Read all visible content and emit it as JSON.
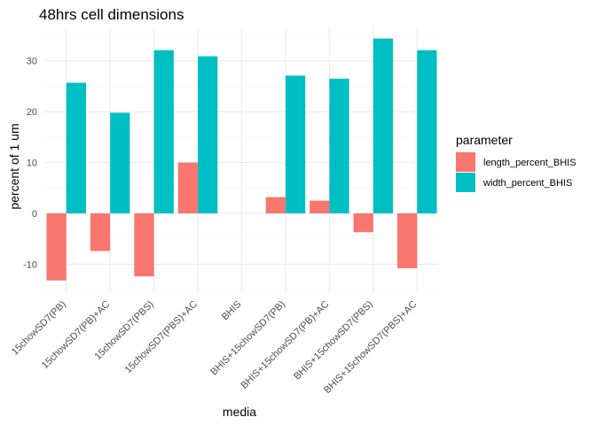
{
  "chart_data": {
    "type": "bar",
    "title": "48hrs cell dimensions",
    "xlabel": "media",
    "ylabel": "percent of 1 um",
    "categories": [
      "15chowSD7(PB)",
      "15chowSD7(PB)+AC",
      "15chowSD7(PBS)",
      "15chowSD7(PBS)+AC",
      "BHIS",
      "BHIS+15chowSD7(PB)",
      "BHIS+15chowSD7(PB)+AC",
      "BHIS+15chowSD7(PBS)",
      "BHIS+15chowSD7(PBS)+AC"
    ],
    "series": [
      {
        "name": "length_percent_BHIS",
        "color": "#F8766D",
        "values": [
          -13.2,
          -7.4,
          -12.4,
          10.0,
          0,
          3.2,
          2.5,
          -3.7,
          -10.8
        ]
      },
      {
        "name": "width_percent_BHIS",
        "color": "#00BFC4",
        "values": [
          25.7,
          19.8,
          32.1,
          30.9,
          0,
          27.1,
          26.5,
          34.4,
          32.1
        ]
      }
    ],
    "yticks": [
      -10,
      0,
      10,
      20,
      30
    ],
    "ylim": [
      -15.5,
      36.4
    ],
    "grid": true,
    "legend": {
      "title": "parameter",
      "placement": "right"
    }
  }
}
